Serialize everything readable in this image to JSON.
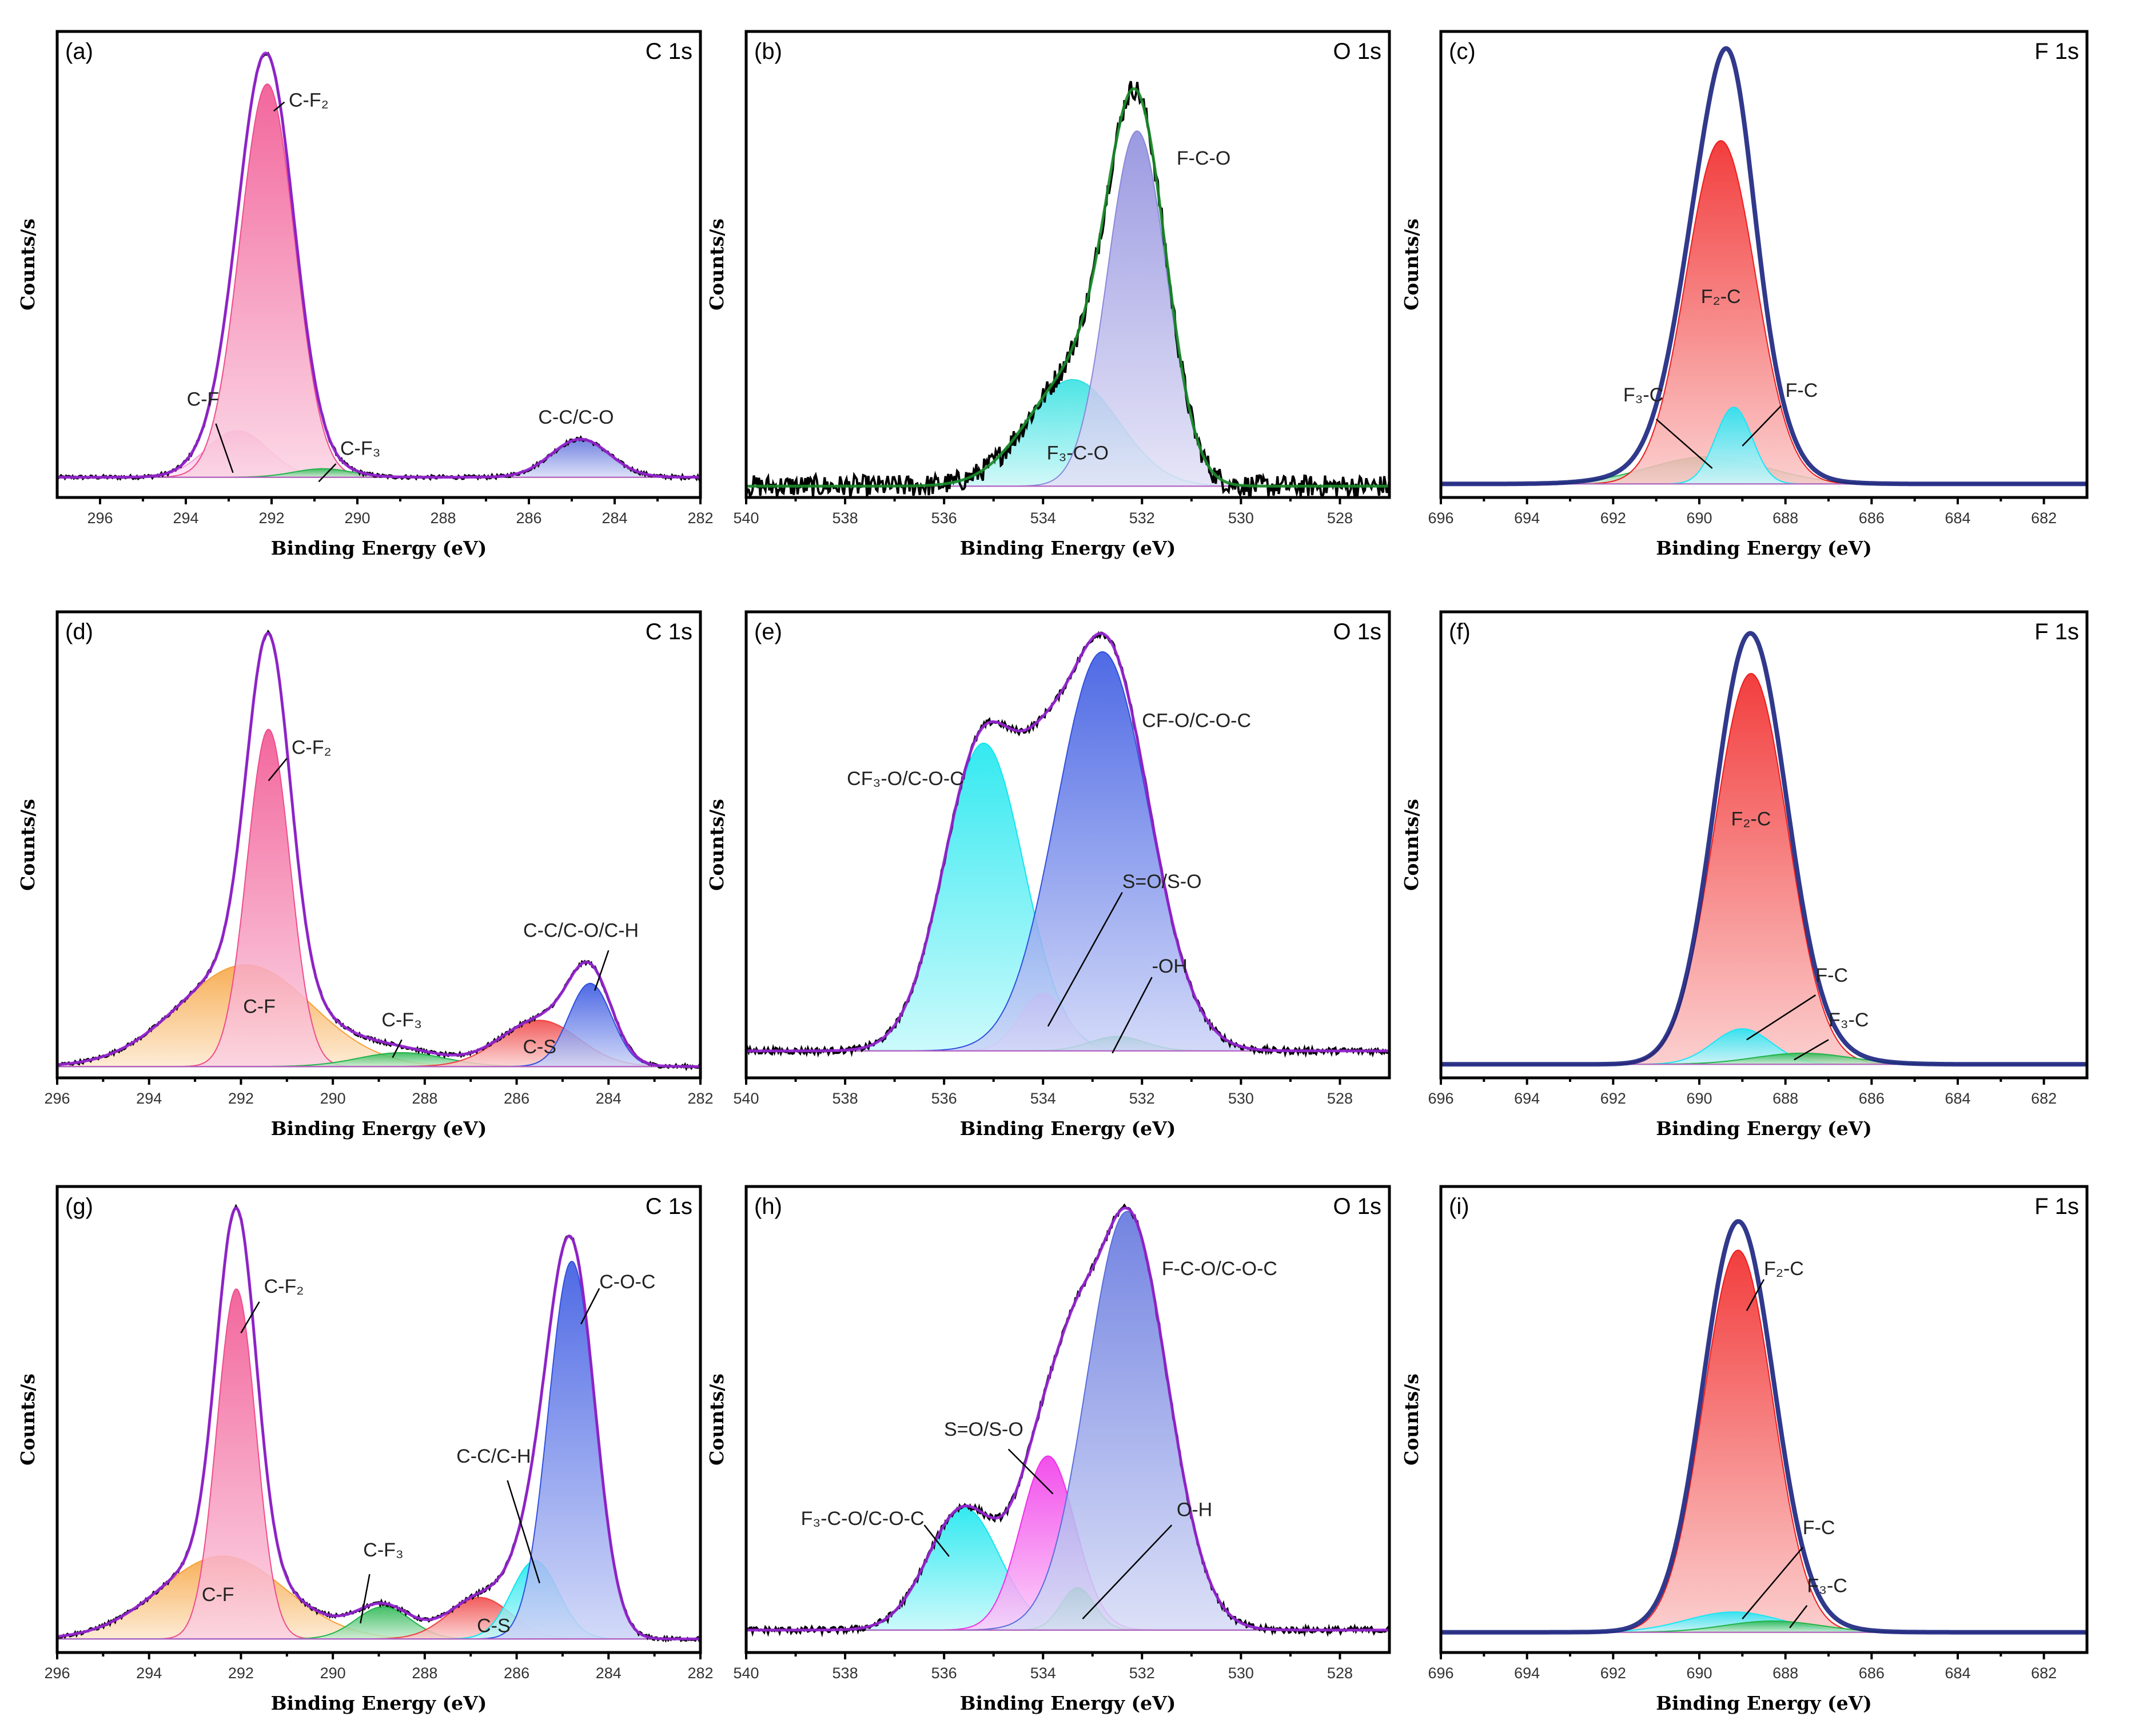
{
  "chart_data": [
    {
      "id": "a",
      "type": "area",
      "panel_label": "(a)",
      "core_level": "C 1s",
      "xlabel": "Binding Energy (eV)",
      "ylabel": "Counts/s",
      "xlim": [
        297,
        282
      ],
      "x_ticks": [
        296,
        294,
        292,
        290,
        288,
        286,
        284,
        282
      ],
      "envelope_color": "#9a27d8",
      "data_color": "#000000",
      "baseline": 0.03,
      "envelope_peak": 0.98,
      "envelope_noise": 0.004,
      "components": [
        {
          "name": "C-F",
          "center": 292.8,
          "fwhm": 1.7,
          "height": 0.11,
          "color": "#f5a3d8",
          "annotate": true,
          "label": {
            "text": "C-F",
            "x": 293.6,
            "y": 0.19,
            "ha": "middle"
          },
          "leader": [
            [
              293.3,
              0.15
            ],
            [
              292.9,
              0.04
            ]
          ]
        },
        {
          "name": "C-F₂",
          "center": 292.1,
          "fwhm": 1.5,
          "height": 0.93,
          "color": "#f04c8c",
          "annotate": true,
          "label": {
            "text": "C-F₂",
            "x": 291.6,
            "y": 0.86,
            "ha": "start"
          },
          "leader": [
            [
              291.7,
              0.87
            ],
            [
              291.95,
              0.85
            ]
          ]
        },
        {
          "name": "C-F₃",
          "center": 290.8,
          "fwhm": 1.6,
          "height": 0.02,
          "color": "#22b44a",
          "annotate": true,
          "label": {
            "text": "C-F₃",
            "x": 290.4,
            "y": 0.08,
            "ha": "start"
          },
          "leader": [
            [
              290.5,
              0.06
            ],
            [
              290.9,
              0.02
            ]
          ]
        },
        {
          "name": "C-C/C-O",
          "center": 284.8,
          "fwhm": 1.6,
          "height": 0.09,
          "color": "#5a6edc",
          "annotate": true,
          "label": {
            "text": "C-C/C-O",
            "x": 284.9,
            "y": 0.15,
            "ha": "middle"
          },
          "leader": []
        }
      ]
    },
    {
      "id": "b",
      "type": "area",
      "panel_label": "(b)",
      "core_level": "O 1s",
      "xlabel": "Binding Energy (eV)",
      "ylabel": "Counts/s",
      "xlim": [
        540,
        527
      ],
      "x_ticks": [
        540,
        538,
        536,
        534,
        532,
        530,
        528
      ],
      "envelope_color": "#1a8c2a",
      "data_color": "#000000",
      "baseline": 0.01,
      "envelope_peak": 0.9,
      "envelope_noise": 0.025,
      "components": [
        {
          "name": "F₃-C-O",
          "center": 533.4,
          "fwhm": 2.2,
          "height": 0.24,
          "color": "#2ee0e0",
          "annotate": true,
          "label": {
            "text": "F₃-C-O",
            "x": 533.3,
            "y": 0.07,
            "ha": "middle"
          },
          "leader": []
        },
        {
          "name": "F-C-O",
          "center": 532.1,
          "fwhm": 1.4,
          "height": 0.8,
          "color": "#8a88dc",
          "annotate": true,
          "label": {
            "text": "F-C-O",
            "x": 531.3,
            "y": 0.73,
            "ha": "start"
          },
          "leader": []
        }
      ]
    },
    {
      "id": "c",
      "type": "area",
      "panel_label": "(c)",
      "core_level": "F 1s",
      "xlabel": "Binding Energy (eV)",
      "ylabel": "Counts/s",
      "xlim": [
        696,
        681
      ],
      "x_ticks": [
        696,
        694,
        692,
        690,
        688,
        686,
        684,
        682
      ],
      "envelope_color": "#1a237e",
      "data_color": "#000000",
      "baseline": 0.015,
      "envelope_peak": 0.99,
      "envelope_noise": 0.0,
      "components": [
        {
          "name": "F₃-C",
          "center": 689.8,
          "fwhm": 3.2,
          "height": 0.06,
          "color": "#25b44a",
          "annotate": true,
          "label": {
            "text": "F₃-C",
            "x": 691.3,
            "y": 0.2,
            "ha": "middle"
          },
          "leader": [
            [
              691.0,
              0.16
            ],
            [
              689.7,
              0.05
            ]
          ]
        },
        {
          "name": "F₂-C",
          "center": 689.5,
          "fwhm": 1.9,
          "height": 0.76,
          "color": "#f01c1c",
          "annotate": true,
          "label": {
            "text": "F₂-C",
            "x": 689.5,
            "y": 0.42,
            "ha": "middle"
          },
          "leader": []
        },
        {
          "name": "F-C",
          "center": 689.2,
          "fwhm": 1.0,
          "height": 0.17,
          "color": "#18e6f6",
          "annotate": true,
          "label": {
            "text": "F-C",
            "x": 688.0,
            "y": 0.21,
            "ha": "start"
          },
          "leader": [
            [
              688.1,
              0.19
            ],
            [
              689.0,
              0.1
            ]
          ]
        }
      ]
    },
    {
      "id": "d",
      "type": "area",
      "panel_label": "(d)",
      "core_level": "C 1s",
      "xlabel": "Binding Energy (eV)",
      "ylabel": "Counts/s",
      "xlim": [
        296,
        282
      ],
      "x_ticks": [
        296,
        294,
        292,
        290,
        288,
        286,
        284,
        282
      ],
      "envelope_color": "#9a27d8",
      "data_color": "#000000",
      "baseline": 0.01,
      "envelope_peak": 0.98,
      "envelope_noise": 0.004,
      "components": [
        {
          "name": "C-F",
          "center": 291.9,
          "fwhm": 3.4,
          "height": 0.22,
          "color": "#f6a13a",
          "annotate": true,
          "label": {
            "text": "C-F",
            "x": 291.6,
            "y": 0.13,
            "ha": "middle"
          },
          "leader": []
        },
        {
          "name": "C-F₂",
          "center": 291.4,
          "fwhm": 1.1,
          "height": 0.73,
          "color": "#f04c8c",
          "annotate": true,
          "label": {
            "text": "C-F₂",
            "x": 290.9,
            "y": 0.71,
            "ha": "start"
          },
          "leader": [
            [
              291.0,
              0.7
            ],
            [
              291.4,
              0.65
            ]
          ]
        },
        {
          "name": "C-F₃",
          "center": 288.5,
          "fwhm": 2.2,
          "height": 0.03,
          "color": "#22b44a",
          "annotate": true,
          "label": {
            "text": "C-F₃",
            "x": 288.5,
            "y": 0.1,
            "ha": "middle"
          },
          "leader": [
            [
              288.5,
              0.07
            ],
            [
              288.7,
              0.03
            ]
          ]
        },
        {
          "name": "C-S",
          "center": 285.5,
          "fwhm": 2.0,
          "height": 0.1,
          "color": "#f04040",
          "annotate": true,
          "label": {
            "text": "C-S",
            "x": 285.5,
            "y": 0.04,
            "ha": "middle"
          },
          "leader": []
        },
        {
          "name": "C-C/C-O/C-H",
          "center": 284.4,
          "fwhm": 1.1,
          "height": 0.18,
          "color": "#3050e0",
          "annotate": true,
          "label": {
            "text": "C-C/C-O/C-H",
            "x": 284.6,
            "y": 0.3,
            "ha": "middle"
          },
          "leader": [
            [
              284.0,
              0.27
            ],
            [
              284.3,
              0.18
            ]
          ]
        }
      ]
    },
    {
      "id": "e",
      "type": "area",
      "panel_label": "(e)",
      "core_level": "O 1s",
      "xlabel": "Binding Energy (eV)",
      "ylabel": "Counts/s",
      "xlim": [
        540,
        527
      ],
      "x_ticks": [
        540,
        538,
        536,
        534,
        532,
        530,
        528
      ],
      "envelope_color": "#9a27d8",
      "data_color": "#000000",
      "baseline": 0.045,
      "envelope_peak": 0.98,
      "envelope_noise": 0.007,
      "components": [
        {
          "name": "CF₃-O/C-O-C",
          "center": 535.2,
          "fwhm": 1.9,
          "height": 0.64,
          "color": "#10e6ee",
          "annotate": true,
          "label": {
            "text": "CF₃-O/C-O-C",
            "x": 535.6,
            "y": 0.64,
            "ha": "end"
          },
          "leader": []
        },
        {
          "name": "S=O/S-O",
          "center": 534.0,
          "fwhm": 1.1,
          "height": 0.12,
          "color": "#f8b0e8",
          "annotate": true,
          "label": {
            "text": "S=O/S-O",
            "x": 532.4,
            "y": 0.41,
            "ha": "start"
          },
          "leader": [
            [
              532.4,
              0.4
            ],
            [
              533.9,
              0.1
            ]
          ]
        },
        {
          "name": "-OH",
          "center": 532.5,
          "fwhm": 1.3,
          "height": 0.03,
          "color": "#2ac44e",
          "annotate": true,
          "label": {
            "text": "-OH",
            "x": 531.8,
            "y": 0.22,
            "ha": "start"
          },
          "leader": [
            [
              531.8,
              0.21
            ],
            [
              532.6,
              0.04
            ]
          ]
        },
        {
          "name": "CF-O/C-O-C",
          "center": 532.8,
          "fwhm": 2.2,
          "height": 0.83,
          "color": "#3050e0",
          "annotate": true,
          "label": {
            "text": "CF-O/C-O-C",
            "x": 532.0,
            "y": 0.77,
            "ha": "start"
          },
          "leader": []
        }
      ]
    },
    {
      "id": "f",
      "type": "area",
      "panel_label": "(f)",
      "core_level": "F 1s",
      "xlabel": "Binding Energy (eV)",
      "ylabel": "Counts/s",
      "xlim": [
        696,
        681
      ],
      "x_ticks": [
        696,
        694,
        692,
        690,
        688,
        686,
        684,
        682
      ],
      "envelope_color": "#1a237e",
      "data_color": "#000000",
      "baseline": 0.015,
      "envelope_peak": 0.98,
      "envelope_noise": 0.0,
      "components": [
        {
          "name": "F₂-C",
          "center": 688.8,
          "fwhm": 2.0,
          "height": 0.88,
          "color": "#f01c1c",
          "annotate": true,
          "label": {
            "text": "F₂-C",
            "x": 688.8,
            "y": 0.55,
            "ha": "middle"
          },
          "leader": []
        },
        {
          "name": "F-C",
          "center": 689.0,
          "fwhm": 1.6,
          "height": 0.08,
          "color": "#18e6f6",
          "annotate": true,
          "label": {
            "text": "F-C",
            "x": 687.3,
            "y": 0.2,
            "ha": "start"
          },
          "leader": [
            [
              687.3,
              0.17
            ],
            [
              688.9,
              0.07
            ]
          ]
        },
        {
          "name": "F₃-C",
          "center": 687.6,
          "fwhm": 2.6,
          "height": 0.025,
          "color": "#22b44a",
          "annotate": true,
          "label": {
            "text": "F₃-C",
            "x": 687.0,
            "y": 0.1,
            "ha": "start"
          },
          "leader": [
            [
              687.0,
              0.07
            ],
            [
              687.8,
              0.025
            ]
          ]
        }
      ]
    },
    {
      "id": "g",
      "type": "area",
      "panel_label": "(g)",
      "core_level": "C 1s",
      "xlabel": "Binding Energy (eV)",
      "ylabel": "Counts/s",
      "xlim": [
        296,
        282
      ],
      "x_ticks": [
        296,
        294,
        292,
        290,
        288,
        286,
        284,
        282
      ],
      "envelope_color": "#9a27d8",
      "data_color": "#000000",
      "baseline": 0.015,
      "envelope_peak": 0.98,
      "envelope_noise": 0.004,
      "components": [
        {
          "name": "C-F",
          "center": 292.4,
          "fwhm": 3.2,
          "height": 0.18,
          "color": "#f6a13a",
          "annotate": true,
          "label": {
            "text": "C-F",
            "x": 292.5,
            "y": 0.1,
            "ha": "middle"
          },
          "leader": []
        },
        {
          "name": "C-F₂",
          "center": 292.1,
          "fwhm": 1.0,
          "height": 0.76,
          "color": "#f04c8c",
          "annotate": true,
          "label": {
            "text": "C-F₂",
            "x": 291.5,
            "y": 0.79,
            "ha": "start"
          },
          "leader": [
            [
              291.6,
              0.77
            ],
            [
              292.0,
              0.7
            ]
          ]
        },
        {
          "name": "C-F₃",
          "center": 288.9,
          "fwhm": 1.4,
          "height": 0.07,
          "color": "#22b44a",
          "annotate": true,
          "label": {
            "text": "C-F₃",
            "x": 288.9,
            "y": 0.2,
            "ha": "middle"
          },
          "leader": [
            [
              289.2,
              0.16
            ],
            [
              289.4,
              0.05
            ]
          ]
        },
        {
          "name": "C-S",
          "center": 286.8,
          "fwhm": 1.6,
          "height": 0.09,
          "color": "#f04040",
          "annotate": true,
          "label": {
            "text": "C-S",
            "x": 286.5,
            "y": 0.03,
            "ha": "middle"
          },
          "leader": []
        },
        {
          "name": "C-C/C-H",
          "center": 285.6,
          "fwhm": 1.2,
          "height": 0.17,
          "color": "#10e6ee",
          "annotate": true,
          "label": {
            "text": "C-C/C-H",
            "x": 286.5,
            "y": 0.41,
            "ha": "middle"
          },
          "leader": [
            [
              286.2,
              0.37
            ],
            [
              285.5,
              0.14
            ]
          ]
        },
        {
          "name": "C-O-C",
          "center": 284.8,
          "fwhm": 1.2,
          "height": 0.82,
          "color": "#3050e0",
          "annotate": true,
          "label": {
            "text": "C-O-C",
            "x": 284.2,
            "y": 0.8,
            "ha": "start"
          },
          "leader": [
            [
              284.2,
              0.8
            ],
            [
              284.6,
              0.72
            ]
          ]
        }
      ]
    },
    {
      "id": "h",
      "type": "area",
      "panel_label": "(h)",
      "core_level": "O 1s",
      "xlabel": "Binding Energy (eV)",
      "ylabel": "Counts/s",
      "xlim": [
        540,
        527
      ],
      "x_ticks": [
        540,
        538,
        536,
        534,
        532,
        530,
        528
      ],
      "envelope_color": "#9a27d8",
      "data_color": "#000000",
      "baseline": 0.035,
      "envelope_peak": 0.98,
      "envelope_noise": 0.007,
      "components": [
        {
          "name": "F₃-C-O/C-O-C",
          "center": 535.6,
          "fwhm": 1.7,
          "height": 0.26,
          "color": "#10e6ee",
          "annotate": true,
          "label": {
            "text": "F₃-C-O/C-O-C",
            "x": 536.4,
            "y": 0.27,
            "ha": "end"
          },
          "leader": [
            [
              536.4,
              0.27
            ],
            [
              535.9,
              0.2
            ]
          ]
        },
        {
          "name": "S=O/S-O",
          "center": 533.9,
          "fwhm": 1.3,
          "height": 0.37,
          "color": "#f030e8",
          "annotate": true,
          "label": {
            "text": "S=O/S-O",
            "x": 535.2,
            "y": 0.47,
            "ha": "middle"
          },
          "leader": [
            [
              534.7,
              0.44
            ],
            [
              533.8,
              0.34
            ]
          ]
        },
        {
          "name": "O-H",
          "center": 533.3,
          "fwhm": 0.8,
          "height": 0.09,
          "color": "#22b44a",
          "annotate": true,
          "label": {
            "text": "O-H",
            "x": 531.3,
            "y": 0.29,
            "ha": "start"
          },
          "leader": [
            [
              531.4,
              0.27
            ],
            [
              533.2,
              0.06
            ]
          ]
        },
        {
          "name": "F-C-O/C-O-C",
          "center": 532.3,
          "fwhm": 1.9,
          "height": 0.89,
          "color": "#5a6edc",
          "annotate": true,
          "label": {
            "text": "F-C-O/C-O-C",
            "x": 531.6,
            "y": 0.83,
            "ha": "start"
          },
          "leader": []
        }
      ]
    },
    {
      "id": "i",
      "type": "area",
      "panel_label": "(i)",
      "core_level": "F 1s",
      "xlabel": "Binding Energy (eV)",
      "ylabel": "Counts/s",
      "xlim": [
        696,
        681
      ],
      "x_ticks": [
        696,
        694,
        692,
        690,
        688,
        686,
        684,
        682
      ],
      "envelope_color": "#1a237e",
      "data_color": "#000000",
      "baseline": 0.03,
      "envelope_peak": 0.95,
      "envelope_noise": 0.0,
      "components": [
        {
          "name": "F₂-C",
          "center": 689.1,
          "fwhm": 1.9,
          "height": 0.85,
          "color": "#f01c1c",
          "annotate": true,
          "label": {
            "text": "F₂-C",
            "x": 688.5,
            "y": 0.83,
            "ha": "start"
          },
          "leader": [
            [
              688.5,
              0.82
            ],
            [
              688.9,
              0.75
            ]
          ]
        },
        {
          "name": "F-C",
          "center": 689.2,
          "fwhm": 2.6,
          "height": 0.045,
          "color": "#18e6f6",
          "annotate": true,
          "label": {
            "text": "F-C",
            "x": 687.6,
            "y": 0.25,
            "ha": "start"
          },
          "leader": [
            [
              687.6,
              0.22
            ],
            [
              689.0,
              0.06
            ]
          ]
        },
        {
          "name": "F₃-C",
          "center": 688.3,
          "fwhm": 2.6,
          "height": 0.025,
          "color": "#22b44a",
          "annotate": true,
          "label": {
            "text": "F₃-C",
            "x": 687.5,
            "y": 0.12,
            "ha": "start"
          },
          "leader": [
            [
              687.5,
              0.09
            ],
            [
              687.9,
              0.04
            ]
          ]
        }
      ]
    }
  ]
}
